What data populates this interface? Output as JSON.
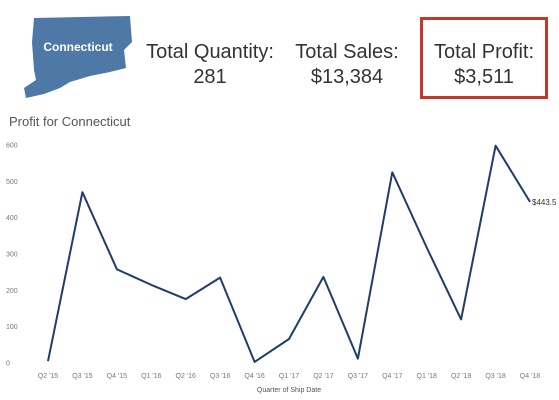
{
  "map": {
    "state_name": "Connecticut",
    "fill_color": "#4e79a7"
  },
  "kpis": {
    "quantity": {
      "label": "Total Quantity:",
      "value": "281"
    },
    "sales": {
      "label": "Total Sales:",
      "value": "$13,384"
    },
    "profit": {
      "label": "Total Profit:",
      "value": "$3,511",
      "highlight_color": "#c0392b"
    }
  },
  "chart_title": "Profit for Connecticut",
  "chart_data": {
    "type": "line",
    "categories": [
      "Q2 '15",
      "Q3 '15",
      "Q4 '15",
      "Q1 '16",
      "Q2 '16",
      "Q3 '16",
      "Q4 '16",
      "Q1 '17",
      "Q2 '17",
      "Q3 '17",
      "Q4 '17",
      "Q1 '18",
      "Q2 '18",
      "Q3 '18",
      "Q4 '18"
    ],
    "values": [
      5,
      470,
      258,
      215,
      176,
      235,
      3,
      66,
      237,
      12,
      525,
      318,
      120,
      598,
      443.5
    ],
    "end_label": "$443.5",
    "xlabel": "Quarter of Ship Date",
    "ylabel": "",
    "ylim": [
      0,
      600
    ],
    "yticks": [
      0,
      100,
      200,
      300,
      400,
      500,
      600
    ],
    "line_color": "#1f3d6b",
    "grid": false
  }
}
